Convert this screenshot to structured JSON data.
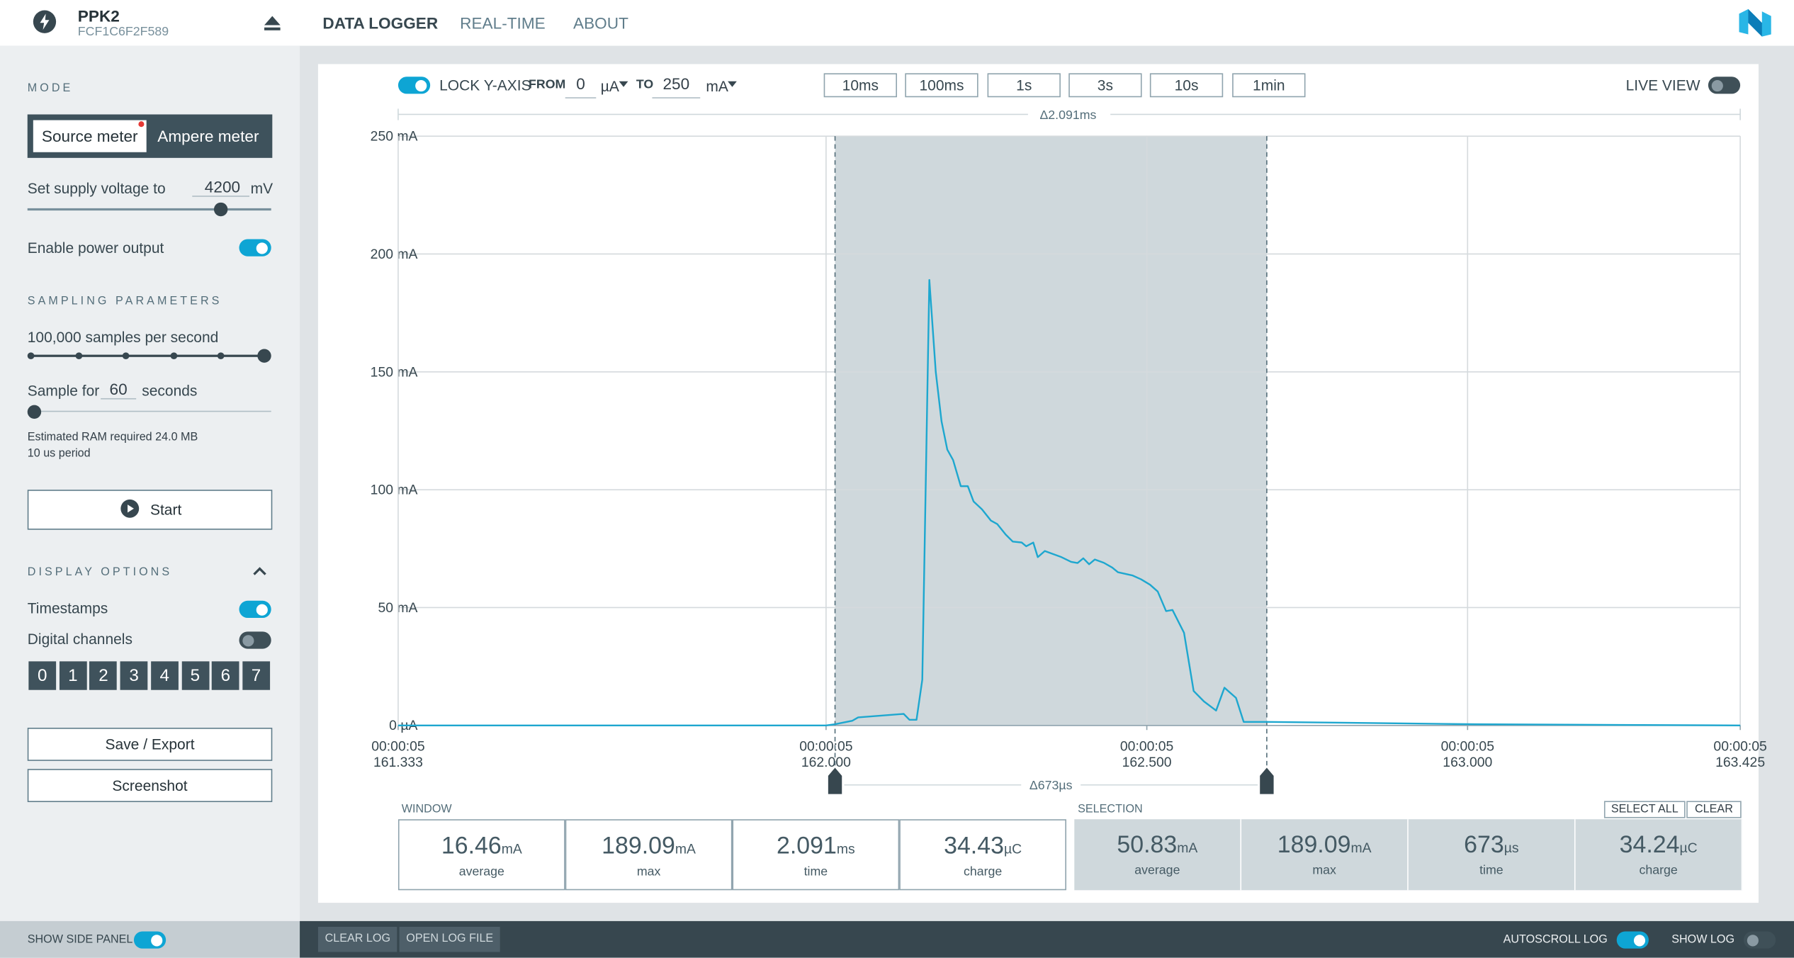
{
  "header": {
    "device": "PPK2",
    "serial": "FCF1C6F2F589",
    "tabs": [
      "DATA LOGGER",
      "REAL-TIME",
      "ABOUT"
    ]
  },
  "sidebar": {
    "mode_title": "MODE",
    "modes": [
      "Source meter",
      "Ampere meter"
    ],
    "voltage_label": "Set supply voltage to",
    "voltage": 4200,
    "voltage_unit": "mV",
    "power_label": "Enable power output",
    "sampling_title": "SAMPLING PARAMETERS",
    "rate_label": "100,000 samples per second",
    "sample_for": "Sample for",
    "sample_seconds": 60,
    "seconds": "seconds",
    "ram": "Estimated RAM required 24.0 MB",
    "period": "10 us period",
    "start": "Start",
    "display_title": "DISPLAY OPTIONS",
    "timestamps": "Timestamps",
    "digital": "Digital channels",
    "channels": [
      0,
      1,
      2,
      3,
      4,
      5,
      6,
      7
    ],
    "save": "Save / Export",
    "screenshot": "Screenshot"
  },
  "toolbar": {
    "lock": "LOCK Y-AXIS",
    "from": "FROM",
    "from_value": 0,
    "from_unit": "µA",
    "to": "TO",
    "to_value": 250,
    "to_unit": "mA",
    "windows": [
      "10ms",
      "100ms",
      "1s",
      "3s",
      "10s",
      "1min"
    ],
    "live": "LIVE VIEW"
  },
  "chart_data": {
    "type": "line",
    "window_label": "Δ2.091ms",
    "selection_label": "Δ673µs",
    "x": [
      161.333,
      162.0,
      162.014,
      162.041,
      162.05,
      162.121,
      162.13,
      162.141,
      162.15,
      162.161,
      162.171,
      162.18,
      162.189,
      162.198,
      162.21,
      162.221,
      162.23,
      162.243,
      162.257,
      162.267,
      162.28,
      162.291,
      162.305,
      162.312,
      162.323,
      162.33,
      162.341,
      162.353,
      162.367,
      162.382,
      162.392,
      162.401,
      162.41,
      162.419,
      162.433,
      162.446,
      162.455,
      162.478,
      162.491,
      162.505,
      162.517,
      162.53,
      162.54,
      162.558,
      162.573,
      162.589,
      162.608,
      162.621,
      162.639,
      162.651,
      162.687,
      162.853,
      163.013,
      163.425
    ],
    "series": [
      {
        "color": "#1ea7cf",
        "values": [
          0,
          0,
          0.5,
          2,
          3.4,
          4.9,
          2.4,
          2.4,
          19.4,
          189,
          150,
          129,
          117,
          112.6,
          101.5,
          101.5,
          95,
          91.7,
          86.9,
          85.4,
          81,
          78,
          77.6,
          76,
          77.6,
          71.4,
          74,
          72.8,
          71.4,
          69.4,
          68.9,
          70.9,
          68.4,
          70.4,
          69,
          67,
          65,
          63.6,
          62,
          59.7,
          56.8,
          48.5,
          49,
          39.3,
          14.6,
          10.2,
          6.3,
          16,
          11.7,
          1.5,
          1.5,
          1,
          0.5,
          0
        ]
      }
    ],
    "selection": [
      162.014,
      162.687
    ],
    "xlim": [
      161.333,
      163.425
    ],
    "ylim": [
      0,
      250
    ],
    "yticks": [
      {
        "value": 0,
        "label": "0 µA"
      },
      {
        "value": 50,
        "label": "50 mA"
      },
      {
        "value": 100,
        "label": "100 mA"
      },
      {
        "value": 150,
        "label": "150 mA"
      },
      {
        "value": 200,
        "label": "200 mA"
      },
      {
        "value": 250,
        "label": "250 mA"
      }
    ],
    "xticks": [
      {
        "value": 161.333,
        "label": [
          "00:00:05",
          "161.333"
        ]
      },
      {
        "value": 162.0,
        "label": [
          "00:00:05",
          "162.000"
        ]
      },
      {
        "value": 162.5,
        "label": [
          "00:00:05",
          "162.500"
        ]
      },
      {
        "value": 163.0,
        "label": [
          "00:00:05",
          "163.000"
        ]
      },
      {
        "value": 163.425,
        "label": [
          "00:00:05",
          "163.425"
        ]
      }
    ],
    "grid": true
  },
  "stats": {
    "window": {
      "title": "WINDOW",
      "items": [
        {
          "value": "16.46",
          "unit": "mA",
          "label": "average"
        },
        {
          "value": "189.09",
          "unit": "mA",
          "label": "max"
        },
        {
          "value": "2.091",
          "unit": "ms",
          "label": "time"
        },
        {
          "value": "34.43",
          "unit": "µC",
          "label": "charge"
        }
      ]
    },
    "selection": {
      "title": "SELECTION",
      "buttons": [
        "SELECT ALL",
        "CLEAR"
      ],
      "items": [
        {
          "value": "50.83",
          "unit": "mA",
          "label": "average"
        },
        {
          "value": "189.09",
          "unit": "mA",
          "label": "max"
        },
        {
          "value": "673",
          "unit": "µs",
          "label": "time"
        },
        {
          "value": "34.24",
          "unit": "µC",
          "label": "charge"
        }
      ]
    }
  },
  "footer": {
    "side_panel": "SHOW SIDE PANEL",
    "clear_log": "CLEAR LOG",
    "open_log": "OPEN LOG FILE",
    "autoscroll": "AUTOSCROLL LOG",
    "show_log": "SHOW LOG"
  }
}
